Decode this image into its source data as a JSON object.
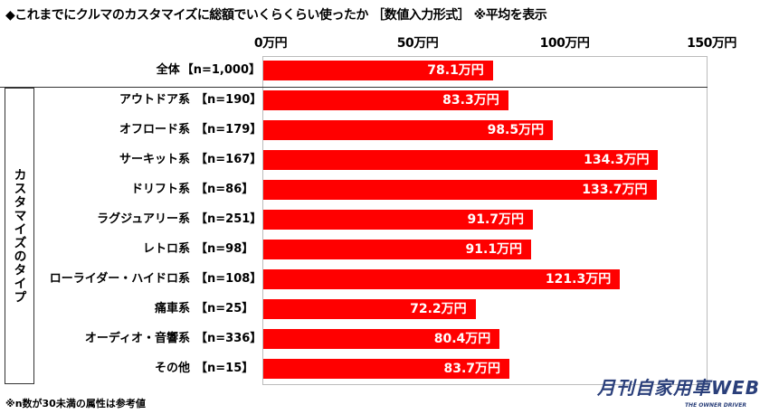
{
  "chart_data": {
    "type": "bar",
    "orientation": "horizontal",
    "title": "◆これまでにクルマのカスタマイズに総額でいくらくらい使ったか ［数値入力形式］ ※平均を表示",
    "xlim": [
      0,
      150
    ],
    "ticks": [
      "0万円",
      "50万円",
      "100万円",
      "150万円"
    ],
    "tick_values": [
      0,
      50,
      100,
      150
    ],
    "group_label": "カスタマイズのタイプ",
    "total": {
      "category": "全体",
      "n": "【n=1,000】",
      "value": 78.1,
      "label": "78.1万円"
    },
    "categories": [
      "アウトドア系",
      "オフロード系",
      "サーキット系",
      "ドリフト系",
      "ラグジュアリー系",
      "レトロ系",
      "ローライダー・ハイドロ系",
      "痛車系",
      "オーディオ・音響系",
      "その他"
    ],
    "n": [
      "【n=190】",
      "【n=179】",
      "【n=167】",
      "【n=86】",
      "【n=251】",
      "【n=98】",
      "【n=108】",
      "【n=25】",
      "【n=336】",
      "【n=15】"
    ],
    "values": [
      83.3,
      98.5,
      134.3,
      133.7,
      91.7,
      91.1,
      121.3,
      72.2,
      80.4,
      83.7
    ],
    "labels": [
      "83.3万円",
      "98.5万円",
      "134.3万円",
      "133.7万円",
      "91.7万円",
      "91.1万円",
      "121.3万円",
      "72.2万円",
      "80.4万円",
      "83.7万円"
    ],
    "bar_color": "#ff0000",
    "note": "※n数が30未満の属性は参考値"
  },
  "logo": {
    "main": "月刊自家用車WEB",
    "sub": "THE OWNER DRIVER"
  }
}
